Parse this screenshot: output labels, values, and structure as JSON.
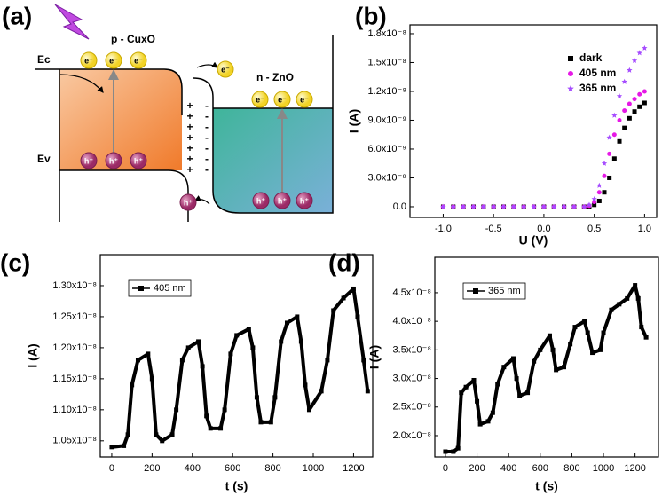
{
  "diagram": {
    "panel_label": "(a)",
    "p_label": "p - CuxO",
    "n_label": "n - ZnO",
    "ec_label": "Ec",
    "ev_label": "Ev",
    "electron": "e⁻",
    "hole": "h⁺",
    "plus": "+",
    "minus": "-"
  },
  "chart_data": [
    {
      "type": "scatter",
      "panel_label": "(b)",
      "x_label": "U (V)",
      "y_label": "I (A)",
      "x": [
        -1.0,
        -0.9,
        -0.8,
        -0.7,
        -0.6,
        -0.5,
        -0.4,
        -0.3,
        -0.2,
        -0.1,
        0.0,
        0.1,
        0.2,
        0.3,
        0.4,
        0.45,
        0.5,
        0.55,
        0.6,
        0.65,
        0.7,
        0.75,
        0.8,
        0.85,
        0.9,
        0.95,
        1.0
      ],
      "series": [
        {
          "name": "dark",
          "color": "#000000",
          "marker": "square",
          "values": [
            0,
            0,
            0,
            0,
            0,
            0,
            0,
            0,
            0,
            0,
            0,
            0,
            0,
            0,
            0,
            0,
            2e-10,
            6e-10,
            1.5e-09,
            3e-09,
            5e-09,
            6.8e-09,
            8.2e-09,
            9.2e-09,
            9.9e-09,
            1.04e-08,
            1.08e-08
          ]
        },
        {
          "name": "405 nm",
          "color": "#e619e6",
          "marker": "circle",
          "values": [
            0,
            0,
            0,
            0,
            0,
            0,
            0,
            0,
            0,
            0,
            0,
            0,
            0,
            0,
            0,
            1e-10,
            5e-10,
            1.5e-09,
            3.2e-09,
            5.5e-09,
            7.5e-09,
            9e-09,
            1e-08,
            1.07e-08,
            1.12e-08,
            1.17e-08,
            1.2e-08
          ]
        },
        {
          "name": "365 nm",
          "color": "#a64dff",
          "marker": "star",
          "values": [
            0,
            0,
            0,
            0,
            0,
            0,
            0,
            0,
            0,
            0,
            0,
            0,
            0,
            0,
            0,
            2e-10,
            8e-10,
            2.2e-09,
            4.5e-09,
            7.2e-09,
            9.5e-09,
            1.15e-08,
            1.3e-08,
            1.42e-08,
            1.52e-08,
            1.6e-08,
            1.65e-08
          ]
        }
      ],
      "xlim": [
        -1.33,
        1.12
      ],
      "xticks": [
        {
          "value": -1,
          "label": "-1.0"
        },
        -0.5,
        {
          "value": 0,
          "label": "0.0"
        },
        0.5,
        {
          "value": 1,
          "label": "1.0"
        }
      ],
      "ylim": [
        -1.11e-09,
        1.892e-08
      ],
      "yticks": [
        {
          "value": 0,
          "label": "0.0"
        },
        {
          "value": 3e-09,
          "label": "3.0x10⁻⁹"
        },
        {
          "value": 6e-09,
          "label": "6.0x10⁻⁹"
        },
        {
          "value": 9e-09,
          "label": "9.0x10⁻⁹"
        },
        {
          "value": 1.2e-08,
          "label": "1.2x10⁻⁸"
        },
        {
          "value": 1.5e-08,
          "label": "1.5x10⁻⁸"
        },
        {
          "value": 1.8e-08,
          "label": "1.8x10⁻⁸"
        }
      ],
      "legend": "upper center",
      "grid": false
    },
    {
      "type": "line",
      "panel_label": "(c)",
      "x_label": "t (s)",
      "y_label": "I (A)",
      "x": [
        0,
        60,
        80,
        100,
        130,
        180,
        200,
        220,
        250,
        300,
        320,
        350,
        380,
        430,
        450,
        470,
        490,
        540,
        560,
        590,
        620,
        680,
        700,
        720,
        740,
        790,
        810,
        840,
        870,
        920,
        940,
        960,
        980,
        1040,
        1070,
        1100,
        1150,
        1200,
        1220,
        1250,
        1270
      ],
      "series": [
        {
          "name": "405 nm",
          "color": "#000000",
          "marker": "square",
          "values": [
            1.04e-08,
            1.042e-08,
            1.06e-08,
            1.14e-08,
            1.18e-08,
            1.19e-08,
            1.15e-08,
            1.06e-08,
            1.05e-08,
            1.06e-08,
            1.1e-08,
            1.18e-08,
            1.2e-08,
            1.21e-08,
            1.17e-08,
            1.09e-08,
            1.07e-08,
            1.07e-08,
            1.1e-08,
            1.19e-08,
            1.22e-08,
            1.23e-08,
            1.2e-08,
            1.12e-08,
            1.08e-08,
            1.08e-08,
            1.12e-08,
            1.21e-08,
            1.24e-08,
            1.25e-08,
            1.21e-08,
            1.14e-08,
            1.1e-08,
            1.13e-08,
            1.18e-08,
            1.26e-08,
            1.28e-08,
            1.295e-08,
            1.25e-08,
            1.18e-08,
            1.13e-08
          ]
        }
      ],
      "xlim": [
        -57,
        1295
      ],
      "xticks": [
        0,
        200,
        400,
        600,
        800,
        1000,
        1200
      ],
      "ylim": [
        1.024e-08,
        1.35e-08
      ],
      "yticks": [
        {
          "value": 1.05e-08,
          "label": "1.05x10⁻⁸"
        },
        {
          "value": 1.1e-08,
          "label": "1.10x10⁻⁸"
        },
        {
          "value": 1.15e-08,
          "label": "1.15x10⁻⁸"
        },
        {
          "value": 1.2e-08,
          "label": "1.20x10⁻⁸"
        },
        {
          "value": 1.25e-08,
          "label": "1.25x10⁻⁸"
        },
        {
          "value": 1.3e-08,
          "label": "1.30x10⁻⁸"
        }
      ],
      "legend": "upper left",
      "grid": false
    },
    {
      "type": "line",
      "panel_label": "(d)",
      "x_label": "t (s)",
      "y_label": "I (A)",
      "x": [
        0,
        50,
        80,
        100,
        130,
        180,
        200,
        220,
        270,
        300,
        330,
        370,
        430,
        450,
        470,
        520,
        560,
        600,
        660,
        680,
        700,
        750,
        790,
        820,
        880,
        900,
        930,
        980,
        1000,
        1050,
        1100,
        1150,
        1200,
        1220,
        1240,
        1270
      ],
      "series": [
        {
          "name": "365 nm",
          "color": "#000000",
          "marker": "square",
          "values": [
            1.72e-08,
            1.72e-08,
            1.78e-08,
            2.75e-08,
            2.85e-08,
            2.97e-08,
            2.6e-08,
            2.2e-08,
            2.25e-08,
            2.4e-08,
            2.9e-08,
            3.2e-08,
            3.35e-08,
            3e-08,
            2.7e-08,
            2.75e-08,
            3.3e-08,
            3.5e-08,
            3.75e-08,
            3.5e-08,
            3.15e-08,
            3.2e-08,
            3.6e-08,
            3.9e-08,
            4e-08,
            3.8e-08,
            3.45e-08,
            3.5e-08,
            3.8e-08,
            4.2e-08,
            4.3e-08,
            4.4e-08,
            4.63e-08,
            4.4e-08,
            3.9e-08,
            3.72e-08
          ]
        }
      ],
      "xlim": [
        -67,
        1348
      ],
      "xticks": [
        0,
        200,
        400,
        600,
        800,
        1000,
        1200
      ],
      "ylim": [
        1.627e-08,
        5.12e-08
      ],
      "yticks": [
        {
          "value": 2e-08,
          "label": "2.0x10⁻⁸"
        },
        {
          "value": 2.5e-08,
          "label": "2.5x10⁻⁸"
        },
        {
          "value": 3e-08,
          "label": "3.0x10⁻⁸"
        },
        {
          "value": 3.5e-08,
          "label": "3.5x10⁻⁸"
        },
        {
          "value": 4e-08,
          "label": "4.0x10⁻⁸"
        },
        {
          "value": 4.5e-08,
          "label": "4.5x10⁻⁸"
        }
      ],
      "legend": "upper left",
      "grid": false
    }
  ]
}
